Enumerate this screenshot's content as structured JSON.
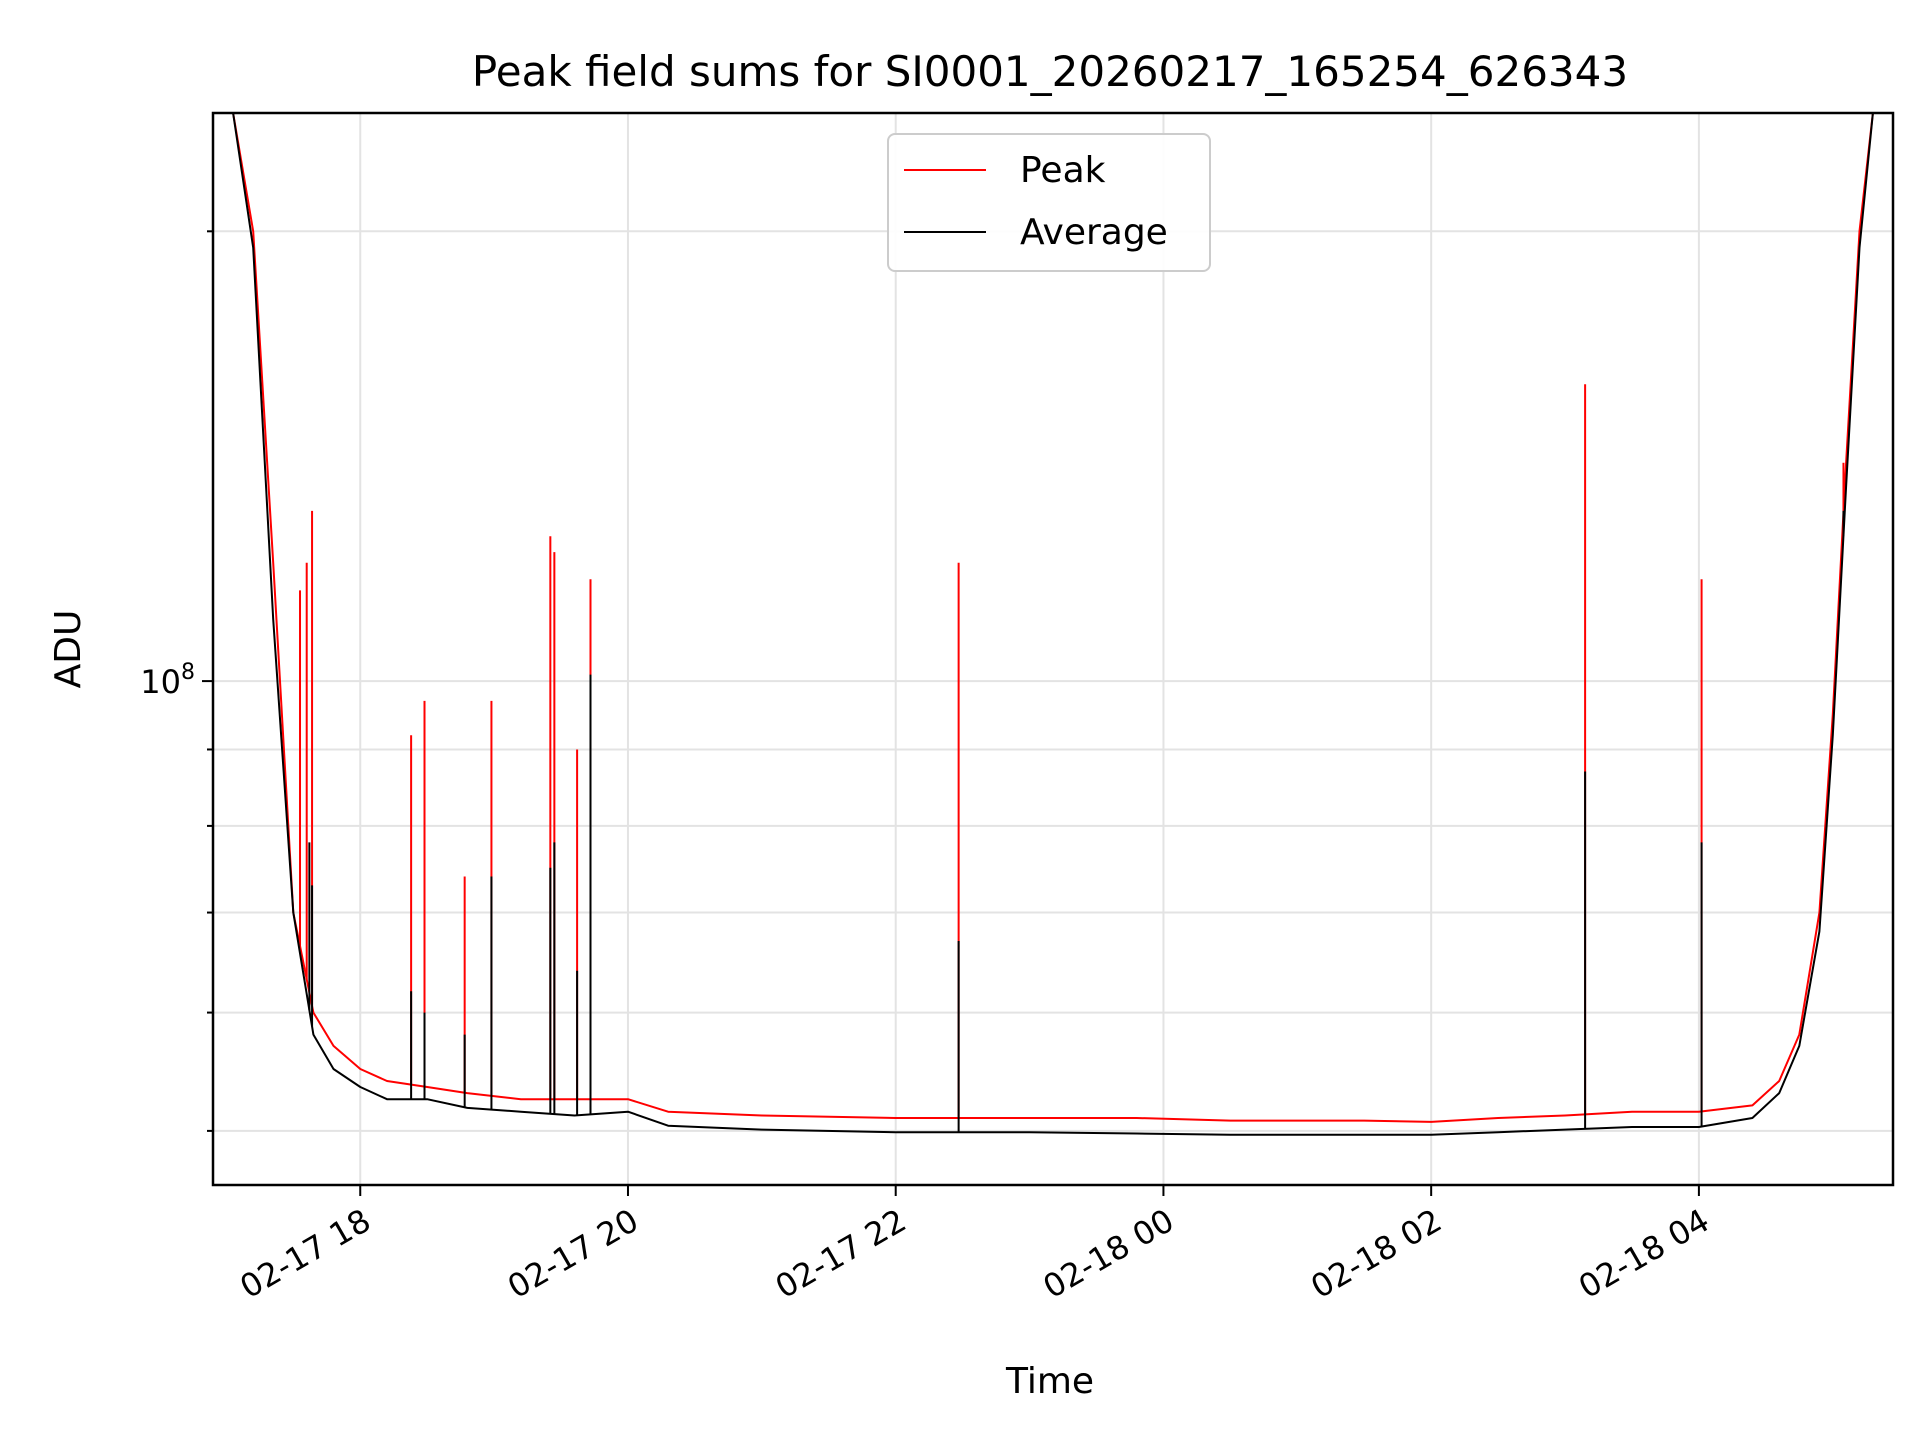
{
  "chart_data": {
    "type": "line",
    "title": "Peak field sums for SI0001_20260217_165254_626343",
    "xlabel": "Time",
    "ylabel": "ADU",
    "yscale": "log",
    "x_unit": "hours since 02-17 17:00",
    "xlim": [
      -0.1,
      12.45
    ],
    "ylim": [
      46000000,
      240000000
    ],
    "grid": true,
    "x_ticks": [
      {
        "value": 1,
        "label": "02-17 18"
      },
      {
        "value": 3,
        "label": "02-17 20"
      },
      {
        "value": 5,
        "label": "02-17 22"
      },
      {
        "value": 7,
        "label": "02-18 00"
      },
      {
        "value": 9,
        "label": "02-18 02"
      },
      {
        "value": 11,
        "label": "02-18 04"
      }
    ],
    "y_major_ticks": [
      {
        "value": 100000000,
        "base": "10",
        "exp": "8"
      }
    ],
    "y_minor_ticks": [
      50000000,
      60000000,
      70000000,
      80000000,
      90000000,
      200000000
    ],
    "legend": {
      "position": "top-center",
      "entries": [
        {
          "label": "Peak",
          "color": "#ff0000"
        },
        {
          "label": "Average",
          "color": "#000000"
        }
      ]
    },
    "series": [
      {
        "name": "Peak",
        "color": "#ff0000",
        "x": [
          -0.1,
          0.05,
          0.2,
          0.35,
          0.5,
          0.65,
          0.8,
          1.0,
          1.2,
          1.5,
          1.8,
          2.2,
          2.6,
          3.0,
          3.3,
          4.0,
          5.0,
          6.0,
          6.8,
          7.5,
          8.0,
          8.5,
          9.0,
          9.5,
          10.0,
          10.5,
          11.0,
          11.4,
          11.6,
          11.75,
          11.9,
          12.0,
          12.1,
          12.2,
          12.3,
          12.45
        ],
        "values": [
          240000000,
          240000000,
          200000000,
          120000000,
          70000000,
          60000000,
          57000000,
          55000000,
          54000000,
          53500000,
          53000000,
          52500000,
          52500000,
          52500000,
          51500000,
          51200000,
          51000000,
          51000000,
          51000000,
          50800000,
          50800000,
          50800000,
          50700000,
          51000000,
          51200000,
          51500000,
          51500000,
          52000000,
          54000000,
          58000000,
          70000000,
          95000000,
          140000000,
          200000000,
          240000000,
          240000000
        ],
        "spikes": [
          {
            "x": 0.55,
            "value": 115000000
          },
          {
            "x": 0.6,
            "value": 120000000
          },
          {
            "x": 0.64,
            "value": 130000000
          },
          {
            "x": 1.38,
            "value": 92000000
          },
          {
            "x": 1.48,
            "value": 97000000
          },
          {
            "x": 1.78,
            "value": 74000000
          },
          {
            "x": 1.98,
            "value": 97000000
          },
          {
            "x": 2.42,
            "value": 125000000
          },
          {
            "x": 2.45,
            "value": 122000000
          },
          {
            "x": 2.62,
            "value": 90000000
          },
          {
            "x": 2.72,
            "value": 117000000
          },
          {
            "x": 5.47,
            "value": 120000000
          },
          {
            "x": 10.15,
            "value": 158000000
          },
          {
            "x": 11.02,
            "value": 117000000
          },
          {
            "x": 12.08,
            "value": 140000000
          }
        ]
      },
      {
        "name": "Average",
        "color": "#000000",
        "x": [
          -0.1,
          0.05,
          0.2,
          0.35,
          0.5,
          0.65,
          0.8,
          1.0,
          1.2,
          1.5,
          1.8,
          2.2,
          2.6,
          3.0,
          3.3,
          4.0,
          5.0,
          6.0,
          6.8,
          7.5,
          8.0,
          8.5,
          9.0,
          9.5,
          10.0,
          10.5,
          11.0,
          11.4,
          11.6,
          11.75,
          11.9,
          12.0,
          12.1,
          12.2,
          12.3,
          12.45
        ],
        "values": [
          240000000,
          240000000,
          195000000,
          110000000,
          70000000,
          58000000,
          55000000,
          53500000,
          52500000,
          52500000,
          51800000,
          51500000,
          51200000,
          51500000,
          50400000,
          50100000,
          49900000,
          49900000,
          49800000,
          49700000,
          49700000,
          49700000,
          49700000,
          49900000,
          50100000,
          50300000,
          50300000,
          51000000,
          53000000,
          57000000,
          68000000,
          92000000,
          135000000,
          195000000,
          240000000,
          240000000
        ],
        "spikes": [
          {
            "x": 0.62,
            "value": 78000000
          },
          {
            "x": 0.64,
            "value": 73000000
          },
          {
            "x": 1.38,
            "value": 62000000
          },
          {
            "x": 1.48,
            "value": 60000000
          },
          {
            "x": 1.78,
            "value": 58000000
          },
          {
            "x": 1.98,
            "value": 74000000
          },
          {
            "x": 2.42,
            "value": 75000000
          },
          {
            "x": 2.45,
            "value": 78000000
          },
          {
            "x": 2.62,
            "value": 64000000
          },
          {
            "x": 2.72,
            "value": 101000000
          },
          {
            "x": 5.47,
            "value": 67000000
          },
          {
            "x": 10.15,
            "value": 87000000
          },
          {
            "x": 11.02,
            "value": 78000000
          },
          {
            "x": 12.08,
            "value": 130000000
          }
        ]
      }
    ]
  }
}
